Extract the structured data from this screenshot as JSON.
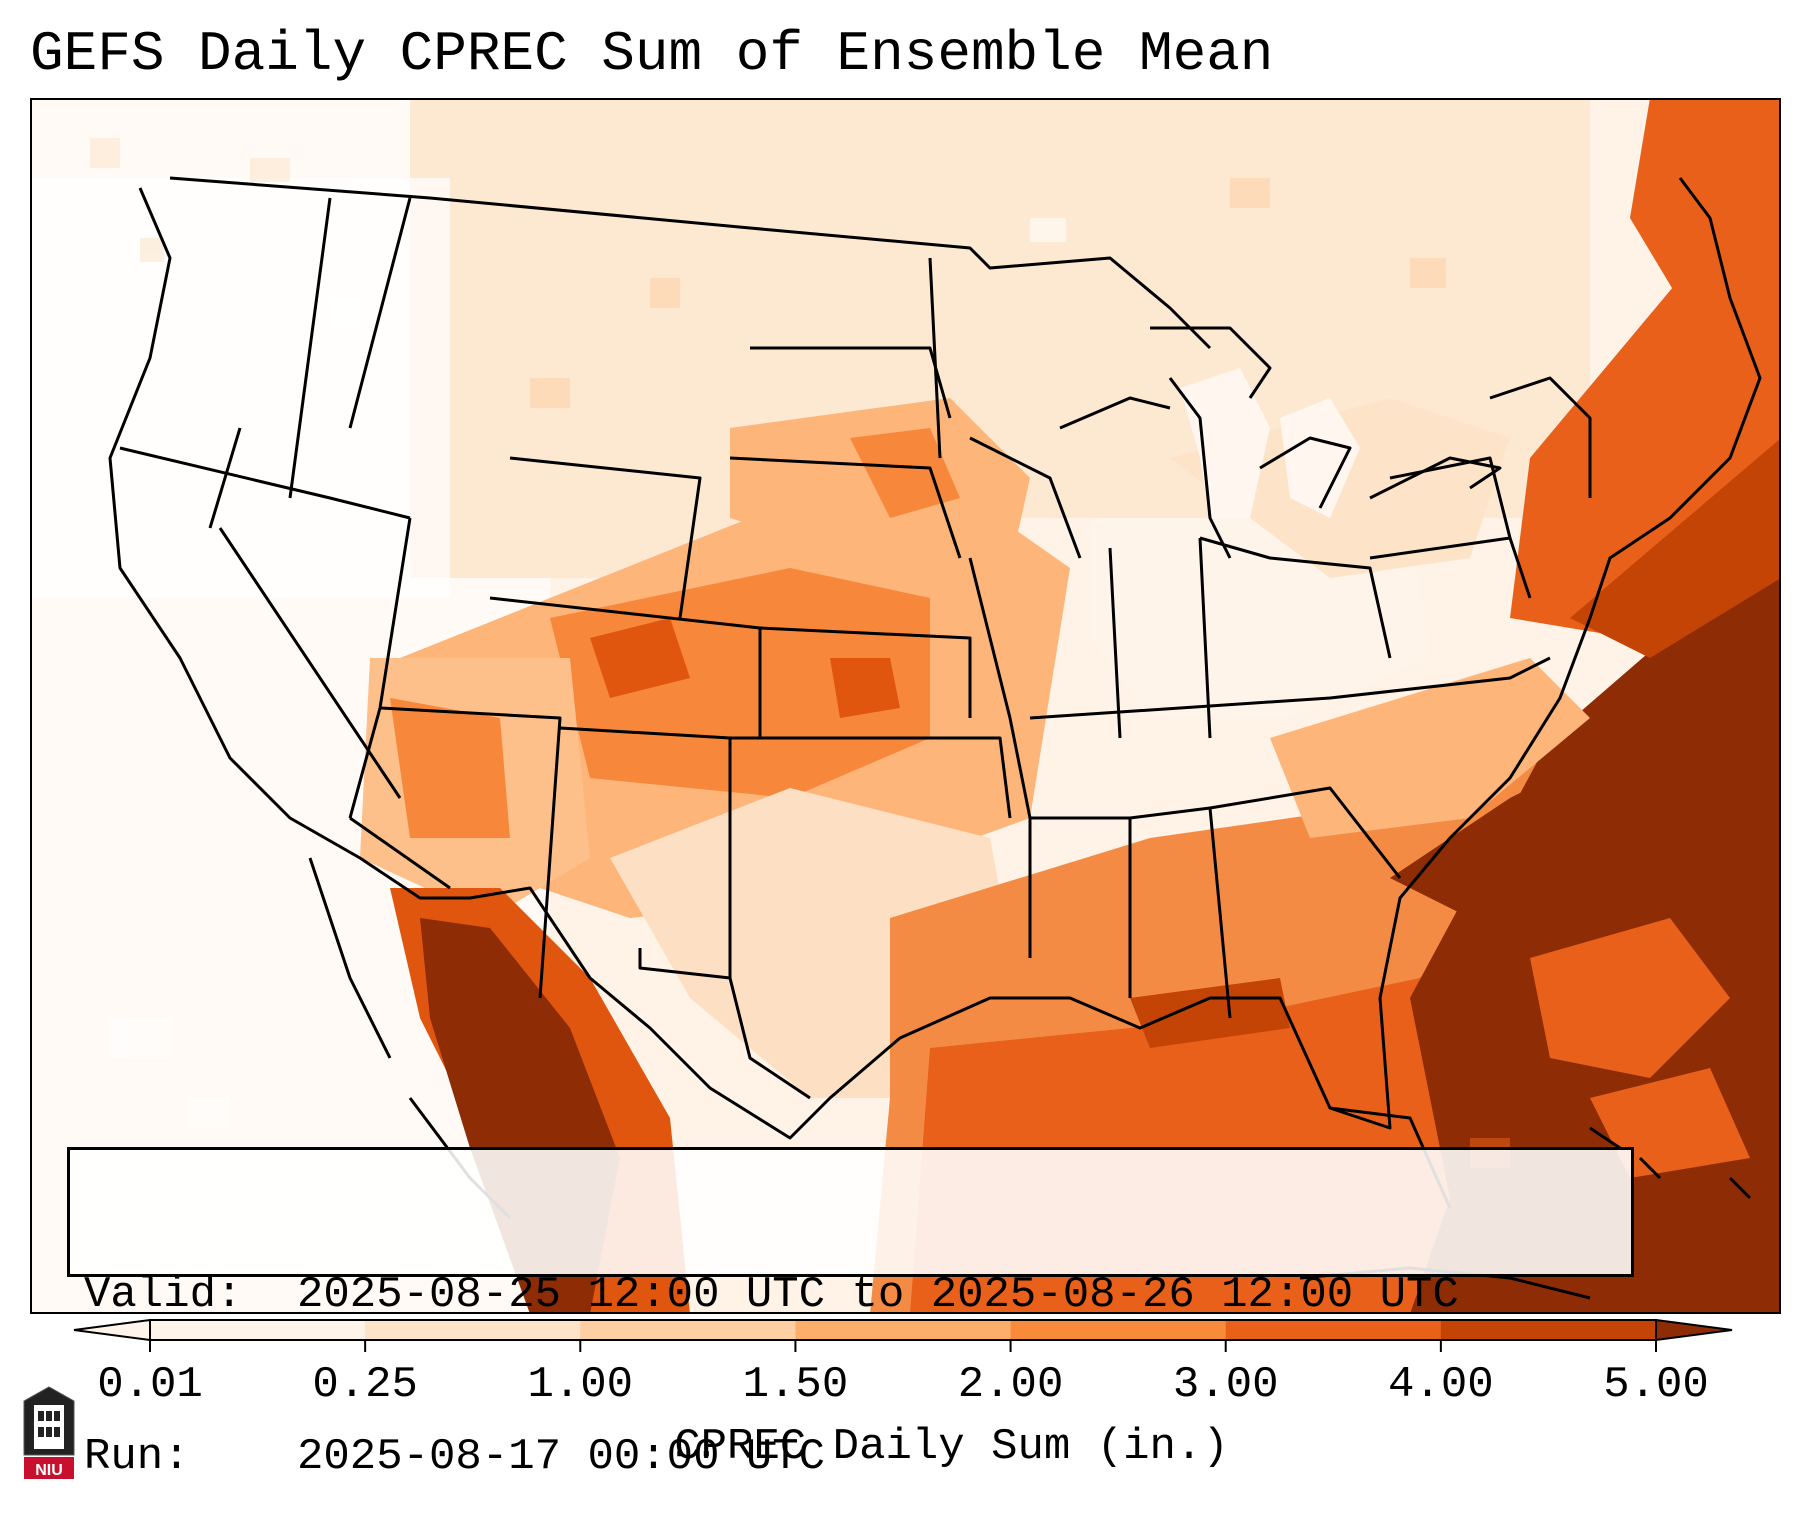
{
  "title": "GEFS Daily CPREC Sum of Ensemble Mean",
  "info": {
    "valid_label": "Valid:",
    "valid_value": "2025-08-25 12:00 UTC to 2025-08-26 12:00 UTC",
    "run_label": "Run:",
    "run_value": "2025-08-17 00:00 UTC"
  },
  "colorbar": {
    "label": "CPREC Daily Sum (in.)",
    "ticks": [
      "0.01",
      "0.25",
      "1.00",
      "1.50",
      "2.00",
      "3.00",
      "4.00",
      "5.00"
    ],
    "colors": [
      "#fff4ea",
      "#fde3c8",
      "#fdcfa2",
      "#fdae6b",
      "#f88a3c",
      "#e8601a",
      "#c44405",
      "#8e2c05"
    ]
  },
  "logo": {
    "text": "NIU",
    "color": "#c8102e"
  },
  "map": {
    "description_colors": {
      "ocean_light": "#fff4ea",
      "high": "#8e2c05"
    }
  }
}
